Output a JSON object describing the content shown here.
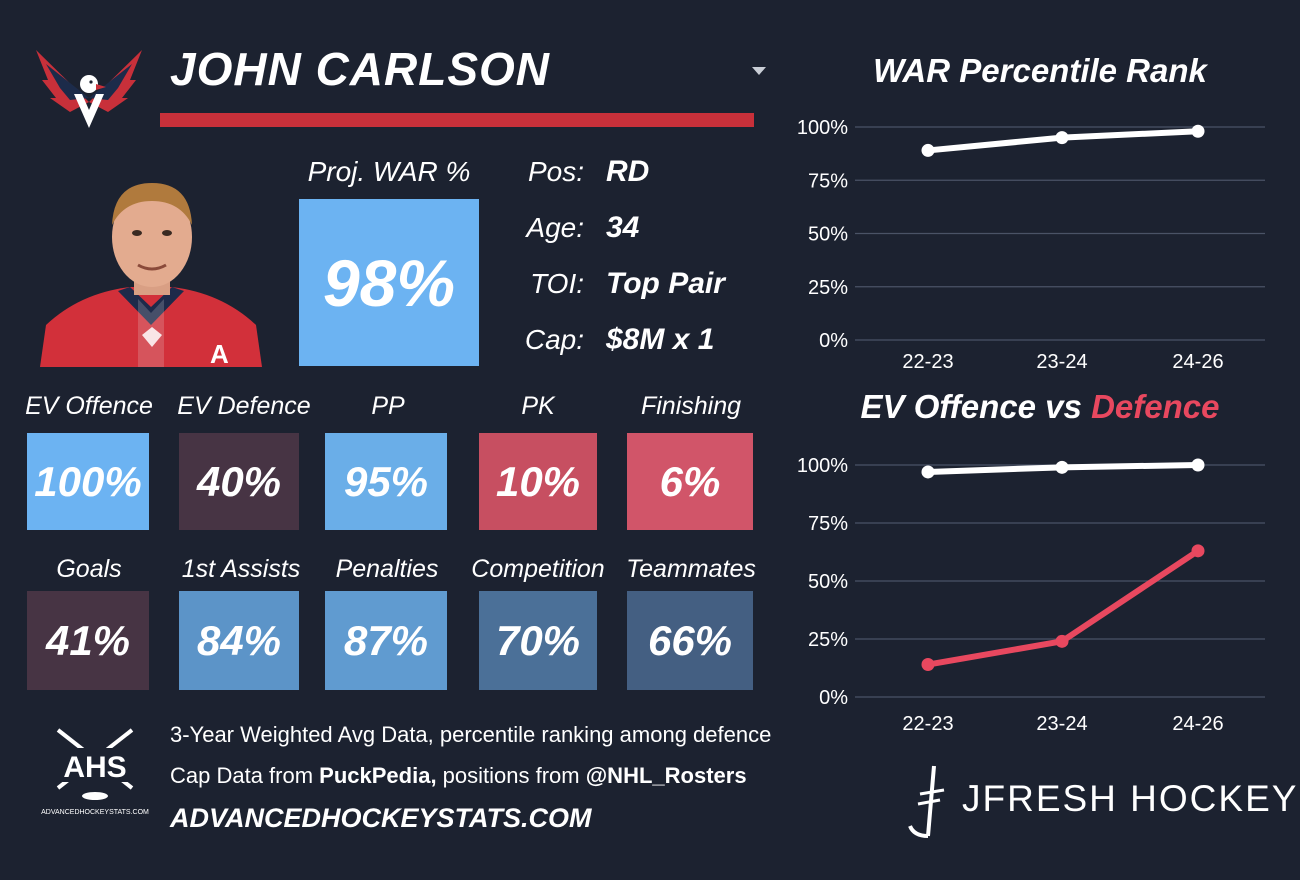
{
  "header": {
    "player_name": "JOHN CARLSON",
    "team_logo_icon": "capitals-eagle-logo",
    "bar_color": "#c8303a"
  },
  "headshot": {
    "icon": "player-headshot"
  },
  "projected": {
    "label": "Proj. WAR %",
    "value": "98%",
    "color": "#6cb3f2"
  },
  "info": [
    {
      "label": "Pos:",
      "value": "RD"
    },
    {
      "label": "Age:",
      "value": "34"
    },
    {
      "label": "TOI:",
      "value": "Top Pair"
    },
    {
      "label": "Cap:",
      "value": "$8M x 1"
    }
  ],
  "metrics_row1": [
    {
      "label": "EV Offence",
      "value": "100%",
      "color": "#6cb3f2"
    },
    {
      "label": "EV Defence",
      "value": "40%",
      "color": "#473444"
    },
    {
      "label": "PP",
      "value": "95%",
      "color": "#6aaee8"
    },
    {
      "label": "PK",
      "value": "10%",
      "color": "#c74f61"
    },
    {
      "label": "Finishing",
      "value": "6%",
      "color": "#d15569"
    }
  ],
  "metrics_row2": [
    {
      "label": "Goals",
      "value": "41%",
      "color": "#473444"
    },
    {
      "label": "1st Assists",
      "value": "84%",
      "color": "#5c94c8"
    },
    {
      "label": "Penalties",
      "value": "87%",
      "color": "#609bd0"
    },
    {
      "label": "Competition",
      "value": "70%",
      "color": "#4b7098"
    },
    {
      "label": "Teammates",
      "value": "66%",
      "color": "#445f82"
    }
  ],
  "chart_data": [
    {
      "type": "line",
      "title": "WAR Percentile Rank",
      "categories": [
        "22-23",
        "23-24",
        "24-26"
      ],
      "series": [
        {
          "values": [
            89,
            95,
            98
          ],
          "color": "#ffffff"
        }
      ],
      "yticks": [
        "100%",
        "75%",
        "50%",
        "25%",
        "0%"
      ],
      "ylim": [
        0,
        100
      ],
      "grid": true
    },
    {
      "type": "line",
      "title_parts": [
        "EV Offence vs ",
        "Defence"
      ],
      "title_colors": [
        "#ffffff",
        "#e8485f"
      ],
      "categories": [
        "22-23",
        "23-24",
        "24-26"
      ],
      "series": [
        {
          "name": "EV Offence",
          "values": [
            97,
            99,
            100
          ],
          "color": "#ffffff"
        },
        {
          "name": "Defence",
          "values": [
            14,
            24,
            63
          ],
          "color": "#e8485f"
        }
      ],
      "yticks": [
        "100%",
        "75%",
        "50%",
        "25%",
        "0%"
      ],
      "ylim": [
        0,
        100
      ],
      "grid": true
    }
  ],
  "footer": {
    "ahs_logo_icon": "ahs-logo",
    "line1": "3-Year Weighted Avg Data, percentile ranking among defence",
    "line2_prefix": "Cap Data from ",
    "line2_bold1": "PuckPedia,",
    "line2_mid": " positions from ",
    "line2_bold2": "@NHL_Rosters",
    "site_url": "ADVANCEDHOCKEYSTATS.COM",
    "brand": "JFRESH HOCKEY",
    "brand_icon": "jfresh-logo"
  }
}
